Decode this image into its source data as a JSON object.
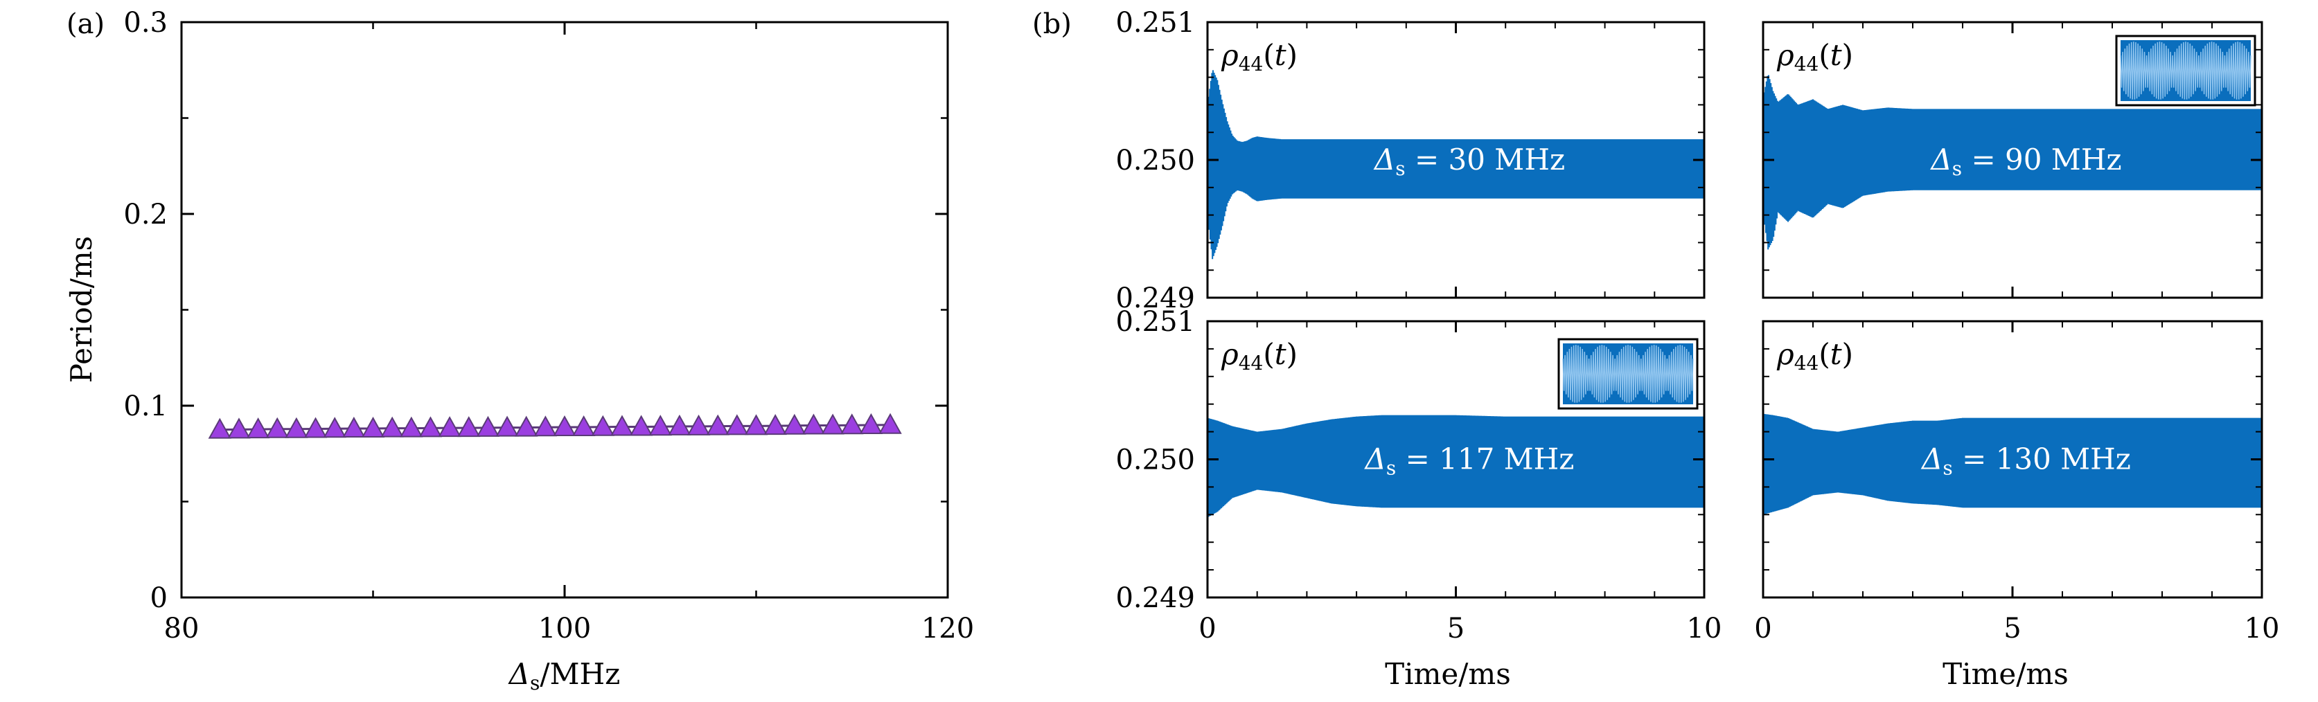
{
  "chart_data": [
    {
      "panel": "(a)",
      "type": "scatter",
      "xlabel": "Δs/MHz",
      "ylabel": "Period/ms",
      "xlim": [
        80,
        120
      ],
      "ylim": [
        0,
        0.3
      ],
      "xticks": [
        "80",
        "100",
        "120"
      ],
      "yticks": [
        "0",
        "0.1",
        "0.2",
        "0.3"
      ],
      "marker": "triangle",
      "color": "#9b3fe0",
      "edge_color": "#5a3a78",
      "x": [
        82,
        83,
        84,
        85,
        86,
        87,
        88,
        89,
        90,
        91,
        92,
        93,
        94,
        95,
        96,
        97,
        98,
        99,
        100,
        101,
        102,
        103,
        104,
        105,
        106,
        107,
        108,
        109,
        110,
        111,
        112,
        113,
        114,
        115,
        116,
        117
      ],
      "y": [
        0.0875,
        0.0876,
        0.0877,
        0.0878,
        0.0878,
        0.0879,
        0.088,
        0.0881,
        0.0881,
        0.0882,
        0.0882,
        0.0883,
        0.0884,
        0.0884,
        0.0885,
        0.0886,
        0.0886,
        0.0887,
        0.0888,
        0.0888,
        0.0889,
        0.089,
        0.089,
        0.0891,
        0.0892,
        0.0892,
        0.0893,
        0.0894,
        0.0894,
        0.0895,
        0.0896,
        0.0897,
        0.0897,
        0.0898,
        0.0899,
        0.09
      ]
    },
    {
      "panel": "(b)",
      "type": "line",
      "xlabel": "Time/ms",
      "ylabel": "ρ44(t)",
      "xlim": [
        0,
        10
      ],
      "ylim": [
        0.249,
        0.251
      ],
      "xticks": [
        "0",
        "5",
        "10"
      ],
      "yticks": [
        "0.249",
        "0.250",
        "0.251"
      ],
      "color": "#0a6ebd",
      "subplots": [
        {
          "annotation": "Δs = 30 MHz",
          "inset": false,
          "envelope_t": [
            0,
            0.1,
            0.2,
            0.3,
            0.4,
            0.5,
            0.6,
            0.7,
            0.8,
            0.9,
            1.0,
            1.2,
            1.5,
            2.0,
            3.0,
            5.0,
            7.5,
            10
          ],
          "upper": [
            0.2504,
            0.25066,
            0.25058,
            0.25042,
            0.25028,
            0.25018,
            0.25014,
            0.25013,
            0.25014,
            0.25016,
            0.25017,
            0.25016,
            0.25015,
            0.25015,
            0.25015,
            0.25015,
            0.25015,
            0.25015
          ],
          "lower": [
            0.2496,
            0.24928,
            0.24938,
            0.24952,
            0.24968,
            0.24975,
            0.24978,
            0.24977,
            0.24975,
            0.24972,
            0.2497,
            0.24971,
            0.24972,
            0.24972,
            0.24972,
            0.24972,
            0.24972,
            0.24972
          ]
        },
        {
          "annotation": "Δs = 90 MHz",
          "inset": true,
          "envelope_t": [
            0,
            0.1,
            0.2,
            0.3,
            0.5,
            0.7,
            1.0,
            1.3,
            1.6,
            2.0,
            2.5,
            3.0,
            5.0,
            7.5,
            10
          ],
          "upper": [
            0.25045,
            0.25063,
            0.2505,
            0.25042,
            0.25048,
            0.2504,
            0.25044,
            0.25037,
            0.2504,
            0.25036,
            0.25038,
            0.25037,
            0.25037,
            0.25037,
            0.25037
          ],
          "lower": [
            0.24962,
            0.24935,
            0.24942,
            0.24962,
            0.24955,
            0.24963,
            0.24958,
            0.24968,
            0.24965,
            0.24974,
            0.24977,
            0.24978,
            0.24978,
            0.24978,
            0.24978
          ]
        },
        {
          "annotation": "Δs = 117 MHz",
          "inset": true,
          "envelope_t": [
            0,
            0.2,
            0.5,
            1.0,
            1.5,
            2.0,
            2.5,
            3.0,
            3.5,
            4.0,
            5.0,
            6.0,
            7.0,
            8.0,
            9.0,
            10
          ],
          "upper": [
            0.2503,
            0.25028,
            0.25024,
            0.2502,
            0.25022,
            0.25026,
            0.25029,
            0.25031,
            0.25032,
            0.25032,
            0.25032,
            0.25031,
            0.25031,
            0.25031,
            0.25031,
            0.25031
          ],
          "lower": [
            0.24958,
            0.24962,
            0.24972,
            0.24978,
            0.24976,
            0.24972,
            0.24968,
            0.24966,
            0.24965,
            0.24965,
            0.24965,
            0.24965,
            0.24965,
            0.24965,
            0.24965,
            0.24965
          ]
        },
        {
          "annotation": "Δs = 130 MHz",
          "inset": false,
          "envelope_t": [
            0,
            0.2,
            0.5,
            1.0,
            1.5,
            2.0,
            2.5,
            3.0,
            3.5,
            4.0,
            5.0,
            6.0,
            7.0,
            8.0,
            9.0,
            10
          ],
          "upper": [
            0.25033,
            0.25032,
            0.2503,
            0.25022,
            0.2502,
            0.25023,
            0.25026,
            0.25028,
            0.25028,
            0.2503,
            0.2503,
            0.2503,
            0.2503,
            0.2503,
            0.2503,
            0.2503
          ],
          "lower": [
            0.2496,
            0.24962,
            0.24965,
            0.24974,
            0.24976,
            0.24974,
            0.2497,
            0.24968,
            0.24967,
            0.24965,
            0.24965,
            0.24965,
            0.24965,
            0.24965,
            0.24965,
            0.24965
          ]
        }
      ]
    }
  ]
}
